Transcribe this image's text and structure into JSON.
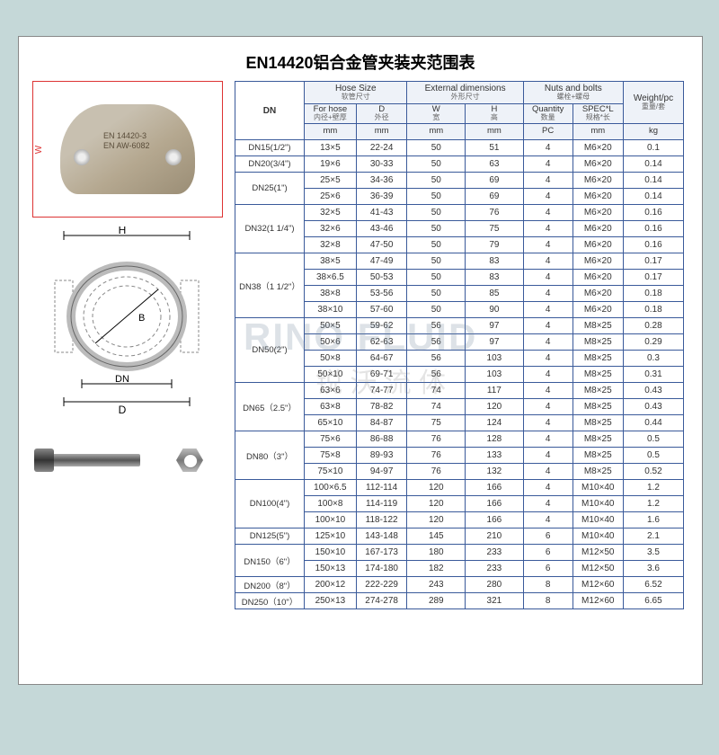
{
  "title": "EN14420铝合金管夹装夹范围表",
  "clamp_text1": "EN 14420-3",
  "clamp_text2": "EN AW-6082",
  "headers": {
    "dn": "DN",
    "hose_group": "Hose Size",
    "hose_group_sub": "软管尺寸",
    "ext_group": "External dimensions",
    "ext_group_sub": "外形尺寸",
    "nuts_group": "Nuts and bolts",
    "nuts_group_sub": "螺栓+螺母",
    "weight": "Weight/pc",
    "weight_sub": "重量/套",
    "for_hose": "For hose",
    "for_hose_sub": "内径+壁厚",
    "d_outer": "D",
    "d_outer_sub": "外径",
    "w": "W",
    "w_sub": "宽",
    "h": "H",
    "h_sub": "高",
    "qty": "Quantity",
    "qty_sub": "数量",
    "spec": "SPEC*L",
    "spec_sub": "规格*长",
    "u_mm": "mm",
    "u_pc": "PC",
    "u_kg": "kg"
  },
  "rows": [
    {
      "dn": "DN15(1/2\")",
      "span": 1,
      "cells": [
        [
          "13×5",
          "22-24",
          "50",
          "51",
          "4",
          "M6×20",
          "0.1"
        ]
      ]
    },
    {
      "dn": "DN20(3/4\")",
      "span": 1,
      "cells": [
        [
          "19×6",
          "30-33",
          "50",
          "63",
          "4",
          "M6×20",
          "0.14"
        ]
      ]
    },
    {
      "dn": "DN25(1\")",
      "span": 2,
      "cells": [
        [
          "25×5",
          "34-36",
          "50",
          "69",
          "4",
          "M6×20",
          "0.14"
        ],
        [
          "25×6",
          "36-39",
          "50",
          "69",
          "4",
          "M6×20",
          "0.14"
        ]
      ]
    },
    {
      "dn": "DN32(1 1/4\")",
      "span": 3,
      "cells": [
        [
          "32×5",
          "41-43",
          "50",
          "76",
          "4",
          "M6×20",
          "0.16"
        ],
        [
          "32×6",
          "43-46",
          "50",
          "75",
          "4",
          "M6×20",
          "0.16"
        ],
        [
          "32×8",
          "47-50",
          "50",
          "79",
          "4",
          "M6×20",
          "0.16"
        ]
      ]
    },
    {
      "dn": "DN38（1 1/2\"）",
      "span": 4,
      "cells": [
        [
          "38×5",
          "47-49",
          "50",
          "83",
          "4",
          "M6×20",
          "0.17"
        ],
        [
          "38×6.5",
          "50-53",
          "50",
          "83",
          "4",
          "M6×20",
          "0.17"
        ],
        [
          "38×8",
          "53-56",
          "50",
          "85",
          "4",
          "M6×20",
          "0.18"
        ],
        [
          "38×10",
          "57-60",
          "50",
          "90",
          "4",
          "M6×20",
          "0.18"
        ]
      ]
    },
    {
      "dn": "DN50(2\")",
      "span": 4,
      "cells": [
        [
          "50×5",
          "59-62",
          "56",
          "97",
          "4",
          "M8×25",
          "0.28"
        ],
        [
          "50×6",
          "62-63",
          "56",
          "97",
          "4",
          "M8×25",
          "0.29"
        ],
        [
          "50×8",
          "64-67",
          "56",
          "103",
          "4",
          "M8×25",
          "0.3"
        ],
        [
          "50×10",
          "69-71",
          "56",
          "103",
          "4",
          "M8×25",
          "0.31"
        ]
      ]
    },
    {
      "dn": "DN65（2.5\"）",
      "span": 3,
      "cells": [
        [
          "63×6",
          "74-77",
          "74",
          "117",
          "4",
          "M8×25",
          "0.43"
        ],
        [
          "63×8",
          "78-82",
          "74",
          "120",
          "4",
          "M8×25",
          "0.43"
        ],
        [
          "65×10",
          "84-87",
          "75",
          "124",
          "4",
          "M8×25",
          "0.44"
        ]
      ]
    },
    {
      "dn": "DN80（3\"）",
      "span": 3,
      "cells": [
        [
          "75×6",
          "86-88",
          "76",
          "128",
          "4",
          "M8×25",
          "0.5"
        ],
        [
          "75×8",
          "89-93",
          "76",
          "133",
          "4",
          "M8×25",
          "0.5"
        ],
        [
          "75×10",
          "94-97",
          "76",
          "132",
          "4",
          "M8×25",
          "0.52"
        ]
      ]
    },
    {
      "dn": "DN100(4\")",
      "span": 3,
      "cells": [
        [
          "100×6.5",
          "112-114",
          "120",
          "166",
          "4",
          "M10×40",
          "1.2"
        ],
        [
          "100×8",
          "114-119",
          "120",
          "166",
          "4",
          "M10×40",
          "1.2"
        ],
        [
          "100×10",
          "118-122",
          "120",
          "166",
          "4",
          "M10×40",
          "1.6"
        ]
      ]
    },
    {
      "dn": "DN125(5\")",
      "span": 1,
      "cells": [
        [
          "125×10",
          "143-148",
          "145",
          "210",
          "6",
          "M10×40",
          "2.1"
        ]
      ]
    },
    {
      "dn": "DN150（6\"）",
      "span": 2,
      "cells": [
        [
          "150×10",
          "167-173",
          "180",
          "233",
          "6",
          "M12×50",
          "3.5"
        ],
        [
          "150×13",
          "174-180",
          "182",
          "233",
          "6",
          "M12×50",
          "3.6"
        ]
      ]
    },
    {
      "dn": "DN200（8\"）",
      "span": 1,
      "cells": [
        [
          "200×12",
          "222-229",
          "243",
          "280",
          "8",
          "M12×60",
          "6.52"
        ]
      ]
    },
    {
      "dn": "DN250（10\"）",
      "span": 1,
      "cells": [
        [
          "250×13",
          "274-278",
          "289",
          "321",
          "8",
          "M12×60",
          "6.65"
        ]
      ]
    }
  ],
  "watermark": "RINO FLUID",
  "watermark2": "锐 沃 流 体",
  "styling": {
    "page_bg": "#c5d8d8",
    "sheet_bg": "#ffffff",
    "border_color": "#3a5a9a",
    "header_bg": "#eef2f8",
    "dim_color": "#d33",
    "font_size_title": 18,
    "font_size_table": 10
  }
}
